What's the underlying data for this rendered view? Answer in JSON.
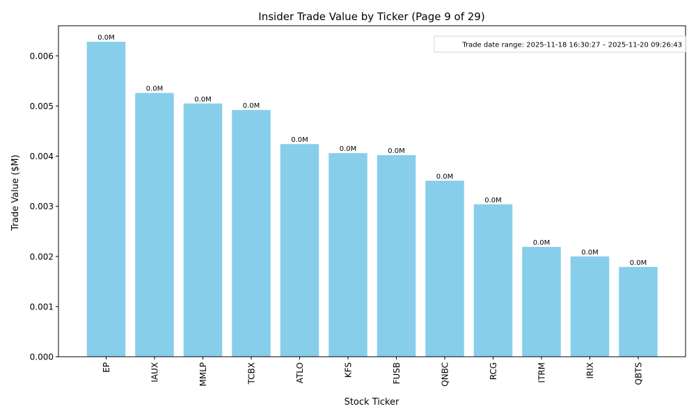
{
  "chart_data": {
    "type": "bar",
    "title": "Insider Trade Value by Ticker (Page 9 of 29)",
    "xlabel": "Stock Ticker",
    "ylabel": "Trade Value ($M)",
    "ylim": [
      0,
      0.0066
    ],
    "yticks": [
      0.0,
      0.001,
      0.002,
      0.003,
      0.004,
      0.005,
      0.006
    ],
    "ytick_labels": [
      "0.000",
      "0.001",
      "0.002",
      "0.003",
      "0.004",
      "0.005",
      "0.006"
    ],
    "categories": [
      "EP",
      "IAUX",
      "MMLP",
      "TCBX",
      "ATLO",
      "KFS",
      "FUSB",
      "QNBC",
      "RCG",
      "ITRM",
      "IRIX",
      "QBTS"
    ],
    "values": [
      0.00628,
      0.00526,
      0.00505,
      0.00492,
      0.00424,
      0.00406,
      0.00402,
      0.00351,
      0.00304,
      0.00219,
      0.002,
      0.00179
    ],
    "data_labels": [
      "0.0M",
      "0.0M",
      "0.0M",
      "0.0M",
      "0.0M",
      "0.0M",
      "0.0M",
      "0.0M",
      "0.0M",
      "0.0M",
      "0.0M",
      "0.0M"
    ],
    "annotation": "Trade date range: 2025-11-18 16:30:27 – 2025-11-20 09:26:43",
    "bar_color": "#87CEEB",
    "grid": false,
    "legend": "none"
  }
}
